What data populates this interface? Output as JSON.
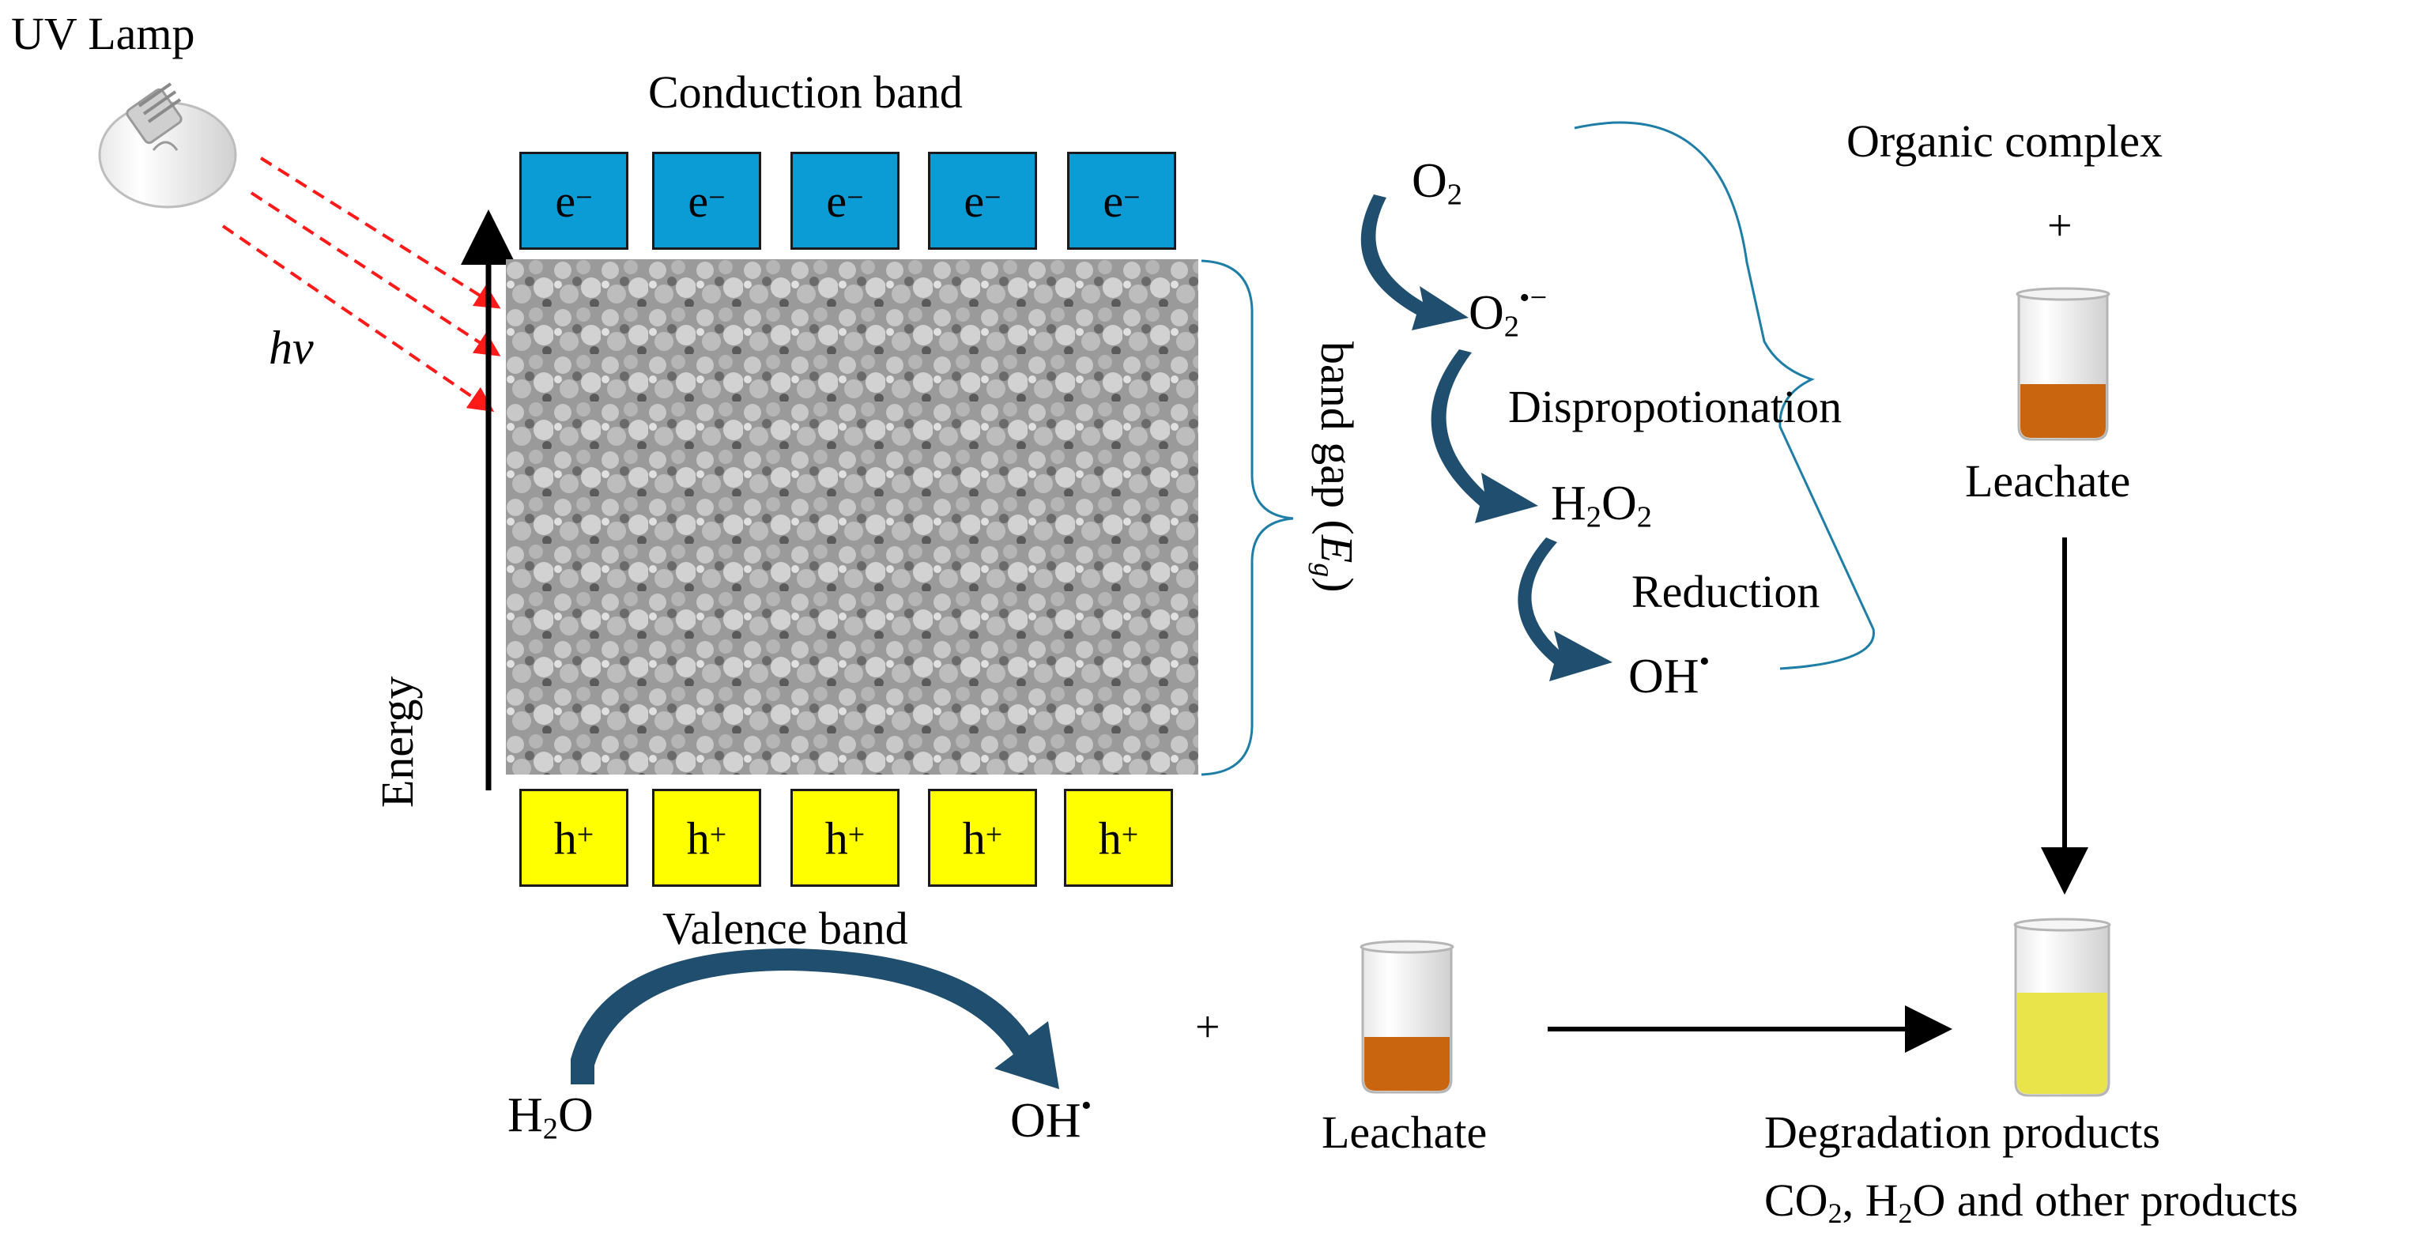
{
  "title_uv": "UV Lamp",
  "hv": "hv",
  "conduction_band": "Conduction band",
  "valence_band": "Valence band",
  "energy": "Energy",
  "band_gap": "band gap (",
  "band_gap_symbol": "E",
  "band_gap_sub": "g",
  "band_gap_close": ")",
  "electron_label": "e",
  "electron_sup": "−",
  "hole_label": "h",
  "hole_sup": "+",
  "electrons": [
    "e",
    "e",
    "e",
    "e",
    "e"
  ],
  "holes": [
    "h",
    "h",
    "h",
    "h",
    "h"
  ],
  "o2_main": "O",
  "o2_sub": "2",
  "superoxide_main": "O",
  "superoxide_sub": "2",
  "superoxide_sup": "•−",
  "dispro": "Dispropotionation",
  "h2o2_a": "H",
  "h2o2_b": "2",
  "h2o2_c": "O",
  "h2o2_d": "2",
  "reduction": "Reduction",
  "oh_top": "OH",
  "oh_top_sup": "•",
  "organic_complex": "Organic complex",
  "plus_top": "+",
  "leachate_top": "Leachate",
  "h2o_a": "H",
  "h2o_b": "2",
  "h2o_c": "O",
  "oh_bottom": "OH",
  "oh_bottom_sup": "•",
  "plus_bottom": "+",
  "leachate_bottom": "Leachate",
  "degradation_products": "Degradation products",
  "co2": "CO",
  "co2_sub": "2",
  "products_tail_a": ", H",
  "products_tail_sub": "2",
  "products_tail_b": "O and other products",
  "colors": {
    "conduction_box": "#0b9bd5",
    "valence_box": "#ffff00",
    "arrow_dark": "#1f4e6e",
    "bracket": "#1f7ea6",
    "ray": "#ff1a1a",
    "leachate": "#c9650e",
    "products": "#e8e44a"
  }
}
